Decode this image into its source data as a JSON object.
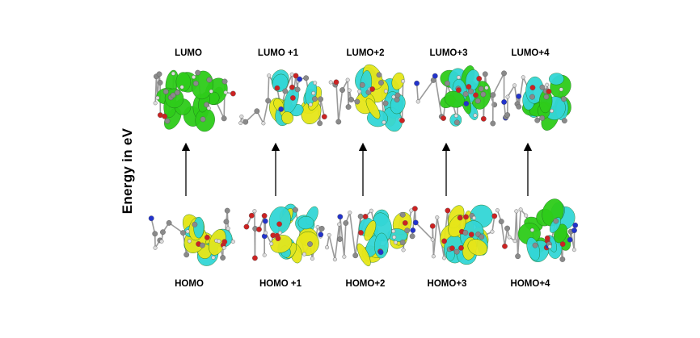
{
  "axis_label": "Energy in  eV",
  "columns": [
    {
      "upper": "LUMO",
      "lower": "HOMO"
    },
    {
      "upper": "LUMO +1",
      "lower": "HOMO +1"
    },
    {
      "upper": "LUMO+2",
      "lower": "HOMO+2"
    },
    {
      "upper": "LUMO+3",
      "lower": "HOMO+3"
    },
    {
      "upper": "LUMO+4",
      "lower": "HOMO+4"
    }
  ],
  "colors": {
    "green": "#2ecc1a",
    "yellow": "#e6e619",
    "cyan": "#33d6d6",
    "carbon": "#8a8a8a",
    "oxygen": "#cc2222",
    "hydrogen": "#dddddd",
    "nitrogen": "#2233cc"
  },
  "panels": {
    "LUMO": {
      "lobes": [
        "green"
      ]
    },
    "LUMO +1": {
      "lobes": [
        "yellow",
        "cyan"
      ]
    },
    "LUMO+2": {
      "lobes": [
        "yellow",
        "cyan"
      ]
    },
    "LUMO+3": {
      "lobes": [
        "green",
        "cyan"
      ]
    },
    "LUMO+4": {
      "lobes": [
        "cyan",
        "green"
      ]
    },
    "HOMO": {
      "lobes": [
        "cyan",
        "yellow"
      ]
    },
    "HOMO +1": {
      "lobes": [
        "cyan",
        "yellow"
      ]
    },
    "HOMO+2": {
      "lobes": [
        "yellow",
        "cyan"
      ]
    },
    "HOMO+3": {
      "lobes": [
        "cyan",
        "yellow"
      ]
    },
    "HOMO+4": {
      "lobes": [
        "green",
        "cyan"
      ]
    }
  }
}
